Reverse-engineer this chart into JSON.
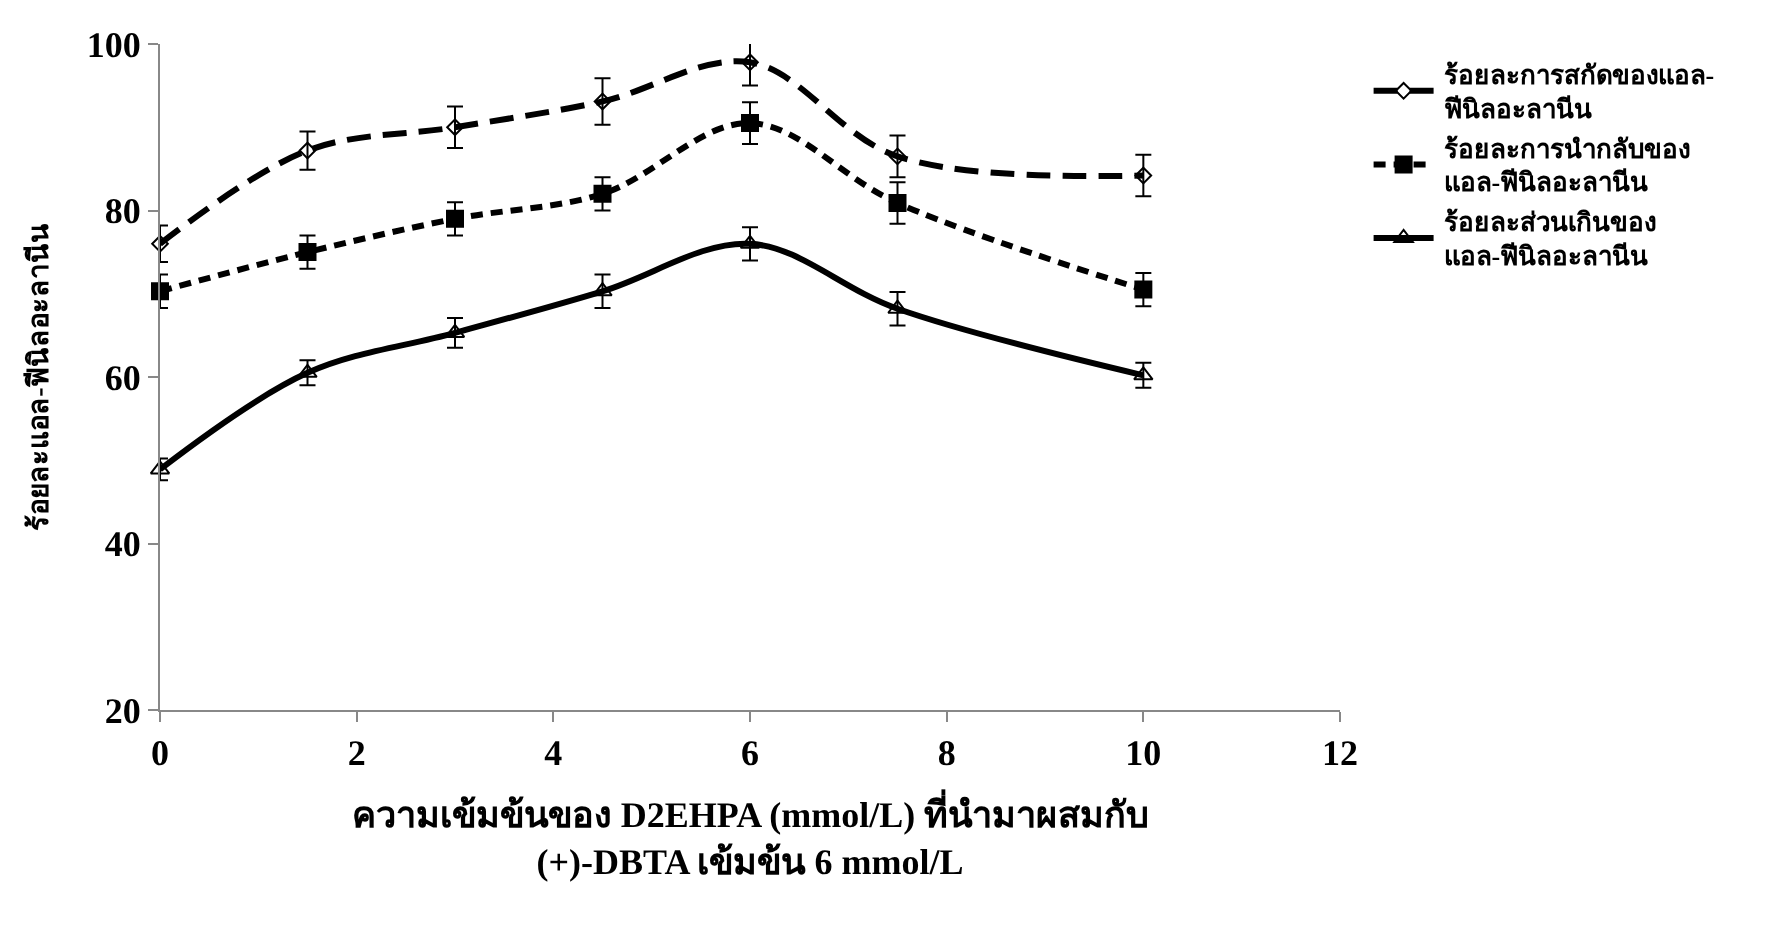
{
  "chart_data": {
    "type": "line",
    "xlabel": "ความเข้มข้นของ D2EHPA (mmol/L) ที่นำมาผสมกับ\n(+)-DBTA เข้มข้น 6 mmol/L",
    "ylabel": "ร้อยละแอล-ฟีนิลอะลานีน",
    "x": [
      0,
      1.5,
      3,
      4.5,
      6,
      7.5,
      10
    ],
    "series": [
      {
        "name": "ร้อยละการสกัดของแอล-\nฟีนิลอะลานีน",
        "color": "#000000",
        "values": [
          76.0,
          87.2,
          90.0,
          93.1,
          97.8,
          86.5,
          84.2
        ],
        "errors": [
          2.2,
          2.3,
          2.5,
          2.8,
          2.8,
          2.5,
          2.5
        ],
        "marker": "diamond",
        "line_style": "dashed"
      },
      {
        "name": "ร้อยละการนำกลับของ\nแอล-ฟีนิลอะลานีน",
        "color": "#000000",
        "values": [
          70.3,
          75.0,
          79.0,
          82.0,
          90.5,
          80.9,
          70.5
        ],
        "errors": [
          2.0,
          2.0,
          2.0,
          2.0,
          2.5,
          2.5,
          2.0
        ],
        "marker": "square",
        "line_style": "dotted"
      },
      {
        "name": "ร้อยละส่วนเกินของ\nแอล-ฟีนิลอะลานีน",
        "color": "#000000",
        "values": [
          48.9,
          60.5,
          65.3,
          70.3,
          76.0,
          68.2,
          60.2
        ],
        "errors": [
          1.3,
          1.5,
          1.8,
          2.0,
          2.0,
          2.0,
          1.5
        ],
        "marker": "triangle",
        "line_style": "solid"
      }
    ],
    "xlim": [
      0,
      12
    ],
    "xticks": [
      0,
      2,
      4,
      6,
      8,
      10,
      12
    ],
    "ylim": [
      20,
      100
    ],
    "yticks": [
      20,
      40,
      60,
      80,
      100
    ],
    "legend": "right"
  }
}
